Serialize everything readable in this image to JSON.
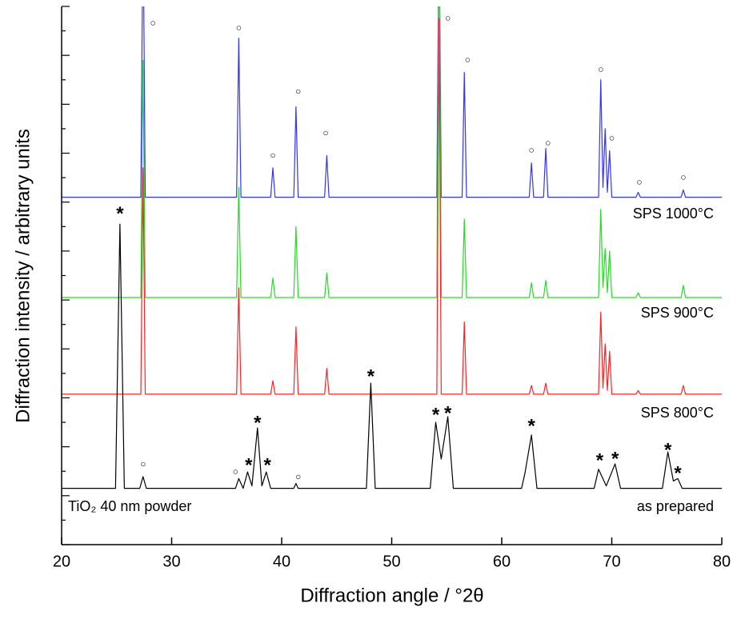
{
  "chart_data": {
    "type": "line",
    "xlabel": "Diffraction angle / °2θ",
    "ylabel": "Diffraction intensity / arbitrary units",
    "sample_label": "TiO₂ 40 nm powder",
    "xlim": [
      20,
      80
    ],
    "xticks": [
      20,
      30,
      40,
      50,
      60,
      70,
      80
    ],
    "ylim": [
      0,
      22
    ],
    "yticks": [
      0,
      1,
      2,
      3,
      4,
      5,
      6,
      7,
      8,
      9,
      10,
      11,
      12,
      13,
      14,
      15,
      16,
      17,
      18,
      19,
      20,
      21,
      22
    ],
    "series": [
      {
        "name": "SPS 1000°C",
        "color": "#3333ff",
        "x": [
          20,
          27.2,
          27.4,
          27.6,
          35.9,
          36.1,
          36.3,
          39.0,
          39.2,
          39.4,
          41.1,
          41.3,
          41.5,
          43.9,
          44.1,
          44.3,
          54.1,
          54.3,
          54.5,
          56.4,
          56.6,
          56.8,
          62.5,
          62.7,
          62.9,
          63.8,
          64.0,
          64.2,
          68.8,
          69.0,
          69.2,
          69.4,
          69.6,
          69.8,
          70.0,
          72.2,
          72.4,
          72.6,
          76.3,
          76.5,
          76.7,
          80
        ],
        "values": [
          14.2,
          14.2,
          26,
          14.2,
          14.2,
          20.7,
          14.2,
          14.2,
          15.4,
          14.2,
          14.2,
          17.9,
          14.2,
          14.2,
          15.9,
          14.2,
          14.2,
          26,
          14.2,
          14.2,
          19.3,
          14.2,
          14.2,
          15.6,
          14.2,
          14.2,
          16.2,
          14.2,
          14.2,
          19.0,
          14.6,
          17.0,
          14.4,
          16.1,
          14.2,
          14.2,
          14.4,
          14.2,
          14.2,
          14.5,
          14.2,
          14.2
        ]
      },
      {
        "name": "SPS 900°C",
        "color": "#22dd22",
        "x": [
          20,
          27.2,
          27.4,
          27.6,
          35.9,
          36.1,
          36.3,
          39.0,
          39.2,
          39.4,
          41.1,
          41.3,
          41.5,
          43.9,
          44.1,
          44.3,
          54.1,
          54.3,
          54.5,
          56.4,
          56.6,
          56.8,
          62.5,
          62.7,
          62.9,
          63.8,
          64.0,
          64.2,
          68.8,
          69.0,
          69.2,
          69.4,
          69.6,
          69.8,
          70.0,
          72.2,
          72.4,
          72.6,
          76.3,
          76.5,
          76.7,
          80
        ],
        "values": [
          10.1,
          10.1,
          19.8,
          10.1,
          10.1,
          14.6,
          10.1,
          10.1,
          10.9,
          10.1,
          10.1,
          13.0,
          10.1,
          10.1,
          11.1,
          10.1,
          10.1,
          26,
          10.1,
          10.1,
          13.3,
          10.1,
          10.1,
          10.7,
          10.1,
          10.1,
          10.8,
          10.1,
          10.1,
          13.7,
          10.5,
          12.1,
          10.3,
          12.0,
          10.1,
          10.1,
          10.3,
          10.1,
          10.1,
          10.6,
          10.1,
          10.1
        ]
      },
      {
        "name": "SPS 800°C",
        "color": "#ff2222",
        "x": [
          20,
          27.2,
          27.4,
          27.6,
          35.9,
          36.1,
          36.3,
          39.0,
          39.2,
          39.4,
          41.1,
          41.3,
          41.5,
          43.9,
          44.1,
          44.3,
          54.1,
          54.3,
          54.5,
          56.4,
          56.6,
          56.8,
          62.5,
          62.7,
          62.9,
          63.8,
          64.0,
          64.2,
          68.8,
          69.0,
          69.2,
          69.4,
          69.6,
          69.8,
          70.0,
          72.2,
          72.4,
          72.6,
          76.3,
          76.5,
          76.7,
          80
        ],
        "values": [
          6.15,
          6.15,
          15.4,
          6.15,
          6.15,
          10.5,
          6.15,
          6.15,
          6.7,
          6.15,
          6.15,
          8.9,
          6.15,
          6.15,
          7.2,
          6.15,
          6.15,
          21.5,
          6.15,
          6.15,
          9.1,
          6.15,
          6.15,
          6.5,
          6.15,
          6.15,
          6.6,
          6.15,
          6.15,
          9.5,
          6.4,
          8.2,
          6.3,
          7.9,
          6.15,
          6.15,
          6.3,
          6.15,
          6.15,
          6.5,
          6.15,
          6.15
        ]
      },
      {
        "name": "as prepared",
        "color": "#000000",
        "x": [
          20,
          24.9,
          25.3,
          25.7,
          27.1,
          27.4,
          27.7,
          35.8,
          36.1,
          36.5,
          36.9,
          37.3,
          37.8,
          38.2,
          38.6,
          39.0,
          41.1,
          41.3,
          41.5,
          47.7,
          48.1,
          48.5,
          53.5,
          54.0,
          54.5,
          55.1,
          55.6,
          61.8,
          62.1,
          62.7,
          63.2,
          68.4,
          68.8,
          69.5,
          70.3,
          70.8,
          74.6,
          75.1,
          75.6,
          76.0,
          76.4,
          80
        ],
        "values": [
          2.3,
          2.3,
          13.1,
          2.3,
          2.3,
          2.78,
          2.3,
          2.3,
          2.7,
          2.3,
          2.97,
          2.4,
          4.77,
          2.4,
          2.97,
          2.3,
          2.3,
          2.5,
          2.3,
          2.3,
          6.6,
          2.3,
          2.3,
          5.0,
          3.5,
          5.23,
          2.3,
          2.3,
          2.9,
          4.48,
          2.3,
          2.3,
          3.08,
          2.4,
          3.3,
          2.3,
          2.3,
          3.79,
          2.6,
          2.7,
          2.3,
          2.3
        ]
      }
    ],
    "annotations": [
      {
        "text": "○",
        "x": 28.3,
        "y": 21.3
      },
      {
        "text": "○",
        "x": 36.1,
        "y": 21.1
      },
      {
        "text": "○",
        "x": 39.2,
        "y": 15.9
      },
      {
        "text": "○",
        "x": 41.5,
        "y": 18.5
      },
      {
        "text": "○",
        "x": 44.0,
        "y": 16.8
      },
      {
        "text": "○",
        "x": 55.1,
        "y": 21.5
      },
      {
        "text": "○",
        "x": 56.9,
        "y": 19.8
      },
      {
        "text": "○",
        "x": 62.7,
        "y": 16.1
      },
      {
        "text": "○",
        "x": 64.2,
        "y": 16.4
      },
      {
        "text": "○",
        "x": 69.0,
        "y": 19.4
      },
      {
        "text": "○",
        "x": 70.0,
        "y": 16.6
      },
      {
        "text": "○",
        "x": 72.5,
        "y": 14.8
      },
      {
        "text": "○",
        "x": 76.5,
        "y": 15.0
      },
      {
        "text": "○",
        "x": 27.4,
        "y": 3.27
      },
      {
        "text": "○",
        "x": 35.8,
        "y": 2.97
      },
      {
        "text": "○",
        "x": 41.5,
        "y": 2.75
      },
      {
        "text": "*",
        "x": 25.3,
        "y": 13.7
      },
      {
        "text": "*",
        "x": 37.0,
        "y": 3.43
      },
      {
        "text": "*",
        "x": 37.8,
        "y": 5.16
      },
      {
        "text": "*",
        "x": 38.7,
        "y": 3.43
      },
      {
        "text": "*",
        "x": 48.1,
        "y": 7.06
      },
      {
        "text": "*",
        "x": 54.0,
        "y": 5.49
      },
      {
        "text": "*",
        "x": 55.1,
        "y": 5.56
      },
      {
        "text": "*",
        "x": 62.7,
        "y": 5.03
      },
      {
        "text": "*",
        "x": 68.9,
        "y": 3.63
      },
      {
        "text": "*",
        "x": 70.3,
        "y": 3.69
      },
      {
        "text": "*",
        "x": 75.1,
        "y": 4.05
      },
      {
        "text": "*",
        "x": 76.0,
        "y": 3.1
      }
    ]
  }
}
